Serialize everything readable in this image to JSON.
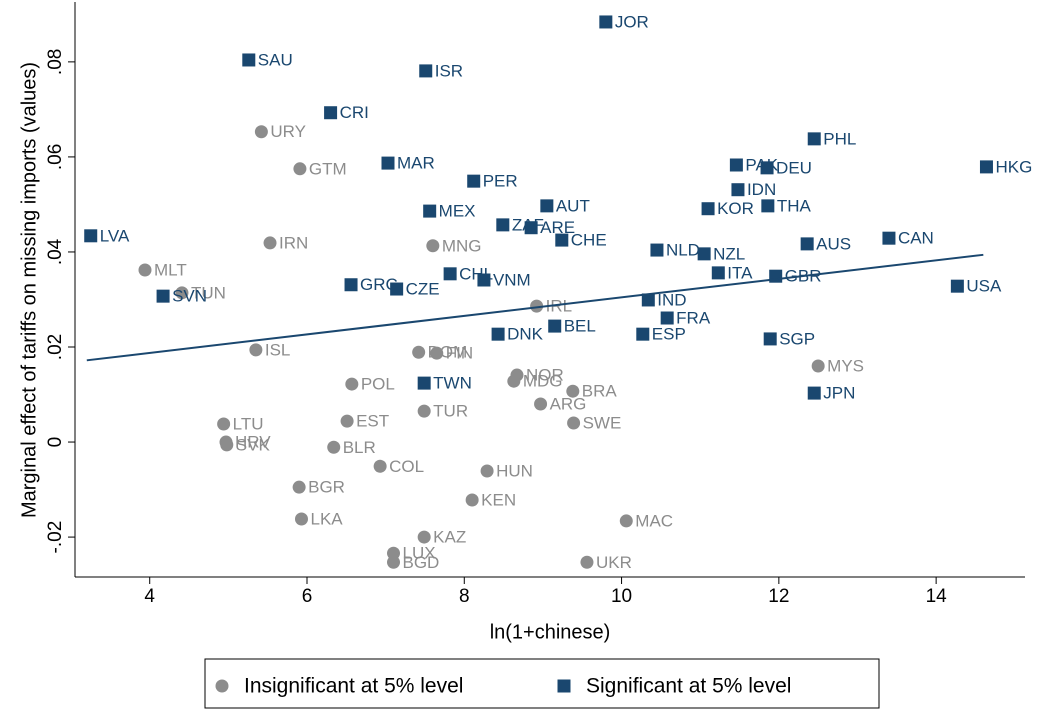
{
  "chart_data": {
    "type": "scatter",
    "x_label": "ln(1+chinese)",
    "y_label": "Marginal effect of tariffs on missing imports (values)",
    "xlim": [
      3.05,
      15.13
    ],
    "ylim": [
      -0.0284,
      0.0926
    ],
    "xticks": [
      4,
      6,
      8,
      10,
      12,
      14
    ],
    "yticks": [
      {
        "value": -0.02,
        "label": "-.02"
      },
      0,
      {
        "value": 0.02,
        "label": ".02"
      },
      {
        "value": 0.04,
        "label": ".04"
      },
      {
        "value": 0.06,
        "label": ".06"
      },
      {
        "value": 0.08,
        "label": ".08"
      }
    ],
    "fit_line": {
      "color": "#1a476f",
      "x": [
        3.2,
        14.6
      ],
      "y": [
        0.0172,
        0.0394
      ]
    },
    "series": [
      {
        "name": "Insignificant at 5% level",
        "color": "#8c8c8c",
        "marker": "circle",
        "labels": [
          "URY",
          "GTM",
          "IRN",
          "MNG",
          "MLT",
          "TUN",
          "IRL",
          "ISL",
          "DOM",
          "FIN",
          "NOR",
          "MDG",
          "POL",
          "BRA",
          "MYS",
          "ARG",
          "TUR",
          "EST",
          "SWE",
          "LTU",
          "HRV",
          "SVK",
          "BLR",
          "COL",
          "HUN",
          "BGR",
          "KEN",
          "LKA",
          "MAC",
          "KAZ",
          "LUX",
          "BGD",
          "UKR"
        ],
        "x": [
          5.42,
          5.91,
          5.53,
          7.6,
          3.94,
          4.41,
          8.92,
          5.35,
          7.42,
          7.65,
          8.67,
          8.63,
          6.57,
          9.38,
          12.5,
          8.97,
          7.49,
          6.51,
          9.39,
          4.94,
          4.97,
          4.98,
          6.34,
          6.93,
          8.29,
          5.9,
          8.1,
          5.93,
          10.06,
          7.49,
          7.1,
          7.1,
          9.56
        ],
        "y": [
          0.0653,
          0.0575,
          0.0419,
          0.0413,
          0.0362,
          0.0314,
          0.0286,
          0.0194,
          0.0189,
          0.0187,
          0.0141,
          0.0128,
          0.0122,
          0.0107,
          0.016,
          0.008,
          0.0065,
          0.0044,
          0.004,
          0.0038,
          0.0,
          -0.0006,
          -0.0011,
          -0.0051,
          -0.0061,
          -0.0095,
          -0.0122,
          -0.0162,
          -0.0166,
          -0.02,
          -0.0234,
          -0.0253,
          -0.0253
        ]
      },
      {
        "name": "Significant at 5% level",
        "color": "#1a476f",
        "marker": "square",
        "labels": [
          "JOR",
          "SAU",
          "ISR",
          "CRI",
          "PHL",
          "MAR",
          "PAK",
          "DEU",
          "HKG",
          "PER",
          "IDN",
          "AUT",
          "THA",
          "MEX",
          "KOR",
          "ZAF",
          "ARE",
          "CHE",
          "LVA",
          "AUS",
          "CAN",
          "NLD",
          "NZL",
          "CHL",
          "VNM",
          "ITA",
          "GBR",
          "GRC",
          "CZE",
          "USA",
          "SVN",
          "IND",
          "FRA",
          "BEL",
          "DNK",
          "ESP",
          "SGP",
          "TWN",
          "JPN"
        ],
        "x": [
          9.8,
          5.26,
          7.51,
          6.3,
          12.45,
          7.03,
          11.46,
          11.85,
          14.64,
          8.12,
          11.48,
          9.05,
          11.86,
          7.56,
          11.1,
          8.49,
          8.85,
          9.24,
          3.25,
          12.36,
          13.4,
          10.45,
          11.05,
          7.82,
          8.25,
          11.23,
          11.96,
          6.56,
          7.14,
          14.27,
          4.17,
          10.34,
          10.58,
          9.15,
          8.43,
          10.27,
          11.89,
          7.49,
          12.45
        ],
        "y": [
          0.0884,
          0.0804,
          0.0781,
          0.0693,
          0.0638,
          0.0587,
          0.0583,
          0.0577,
          0.0579,
          0.0549,
          0.0531,
          0.0497,
          0.0497,
          0.0486,
          0.0491,
          0.0457,
          0.0451,
          0.0425,
          0.0434,
          0.0417,
          0.0429,
          0.0404,
          0.0396,
          0.0354,
          0.0341,
          0.0356,
          0.0349,
          0.0331,
          0.0322,
          0.0328,
          0.0307,
          0.0299,
          0.0261,
          0.0244,
          0.0227,
          0.0227,
          0.0217,
          0.0124,
          0.0103
        ]
      }
    ]
  }
}
